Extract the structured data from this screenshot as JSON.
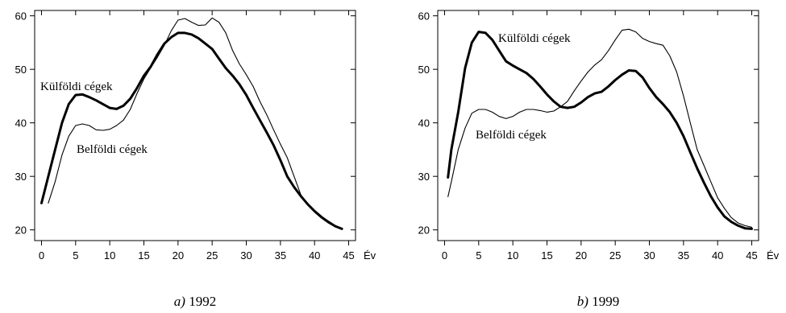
{
  "chart_data": [
    {
      "type": "line",
      "panel_letter": "a)",
      "panel_year": "1992",
      "x_unit": "Év",
      "xlim": [
        -1,
        46
      ],
      "ylim": [
        18,
        61
      ],
      "xticks": [
        0,
        5,
        10,
        15,
        20,
        25,
        30,
        35,
        40,
        45
      ],
      "yticks": [
        20,
        30,
        40,
        50,
        60
      ],
      "grid": false,
      "series": [
        {
          "name": "Külföldi cégek",
          "style": "thick",
          "points": [
            [
              0,
              25
            ],
            [
              1,
              30
            ],
            [
              2,
              35
            ],
            [
              3,
              40
            ],
            [
              4,
              43.5
            ],
            [
              5,
              45.2
            ],
            [
              6,
              45.3
            ],
            [
              7,
              44.8
            ],
            [
              8,
              44.2
            ],
            [
              9,
              43.5
            ],
            [
              10,
              42.8
            ],
            [
              11,
              42.6
            ],
            [
              12,
              43.2
            ],
            [
              13,
              44.5
            ],
            [
              14,
              46.5
            ],
            [
              15,
              48.8
            ],
            [
              16,
              50.5
            ],
            [
              17,
              52.8
            ],
            [
              18,
              54.8
            ],
            [
              19,
              56
            ],
            [
              20,
              56.8
            ],
            [
              21,
              56.8
            ],
            [
              22,
              56.5
            ],
            [
              23,
              55.8
            ],
            [
              24,
              54.8
            ],
            [
              25,
              53.8
            ],
            [
              26,
              52
            ],
            [
              27,
              50.2
            ],
            [
              28,
              48.8
            ],
            [
              29,
              47.2
            ],
            [
              30,
              45.2
            ],
            [
              31,
              42.8
            ],
            [
              32,
              40.5
            ],
            [
              33,
              38.2
            ],
            [
              34,
              35.8
            ],
            [
              35,
              33
            ],
            [
              36,
              30
            ],
            [
              37,
              28
            ],
            [
              38,
              26.3
            ],
            [
              39,
              24.8
            ],
            [
              40,
              23.5
            ],
            [
              41,
              22.4
            ],
            [
              42,
              21.5
            ],
            [
              43,
              20.7
            ],
            [
              44,
              20.2
            ]
          ]
        },
        {
          "name": "Belföldi cégek",
          "style": "thin",
          "points": [
            [
              1,
              25
            ],
            [
              2,
              29
            ],
            [
              3,
              34
            ],
            [
              4,
              37.5
            ],
            [
              5,
              39.5
            ],
            [
              6,
              39.8
            ],
            [
              7,
              39.5
            ],
            [
              8,
              38.7
            ],
            [
              9,
              38.6
            ],
            [
              10,
              38.8
            ],
            [
              11,
              39.5
            ],
            [
              12,
              40.5
            ],
            [
              13,
              42.5
            ],
            [
              14,
              45.5
            ],
            [
              15,
              48.2
            ],
            [
              16,
              50.3
            ],
            [
              17,
              52.3
            ],
            [
              18,
              54.5
            ],
            [
              19,
              57.2
            ],
            [
              20,
              59.2
            ],
            [
              21,
              59.5
            ],
            [
              22,
              58.8
            ],
            [
              23,
              58.2
            ],
            [
              24,
              58.3
            ],
            [
              25,
              59.6
            ],
            [
              26,
              58.8
            ],
            [
              27,
              56.8
            ],
            [
              28,
              53.5
            ],
            [
              29,
              51
            ],
            [
              30,
              49
            ],
            [
              31,
              46.8
            ],
            [
              32,
              44
            ],
            [
              33,
              41.5
            ],
            [
              34,
              38.7
            ],
            [
              35,
              36
            ],
            [
              36,
              33.5
            ],
            [
              37,
              30
            ],
            [
              38,
              26.5
            ],
            [
              39,
              24.8
            ],
            [
              40,
              23.3
            ],
            [
              41,
              22.2
            ],
            [
              42,
              21.3
            ],
            [
              43,
              20.6
            ],
            [
              44,
              20.1
            ]
          ]
        }
      ],
      "annotations": [
        "Külföldi cégek",
        "Belföldi cégek"
      ]
    },
    {
      "type": "line",
      "panel_letter": "b)",
      "panel_year": "1999",
      "x_unit": "Év",
      "xlim": [
        -1,
        46
      ],
      "ylim": [
        18,
        61
      ],
      "xticks": [
        0,
        5,
        10,
        15,
        20,
        25,
        30,
        35,
        40,
        45
      ],
      "yticks": [
        20,
        30,
        40,
        50,
        60
      ],
      "grid": false,
      "series": [
        {
          "name": "Külföldi cégek",
          "style": "thick",
          "points": [
            [
              0.5,
              29.8
            ],
            [
              1,
              35
            ],
            [
              2,
              42
            ],
            [
              3,
              50.2
            ],
            [
              4,
              55
            ],
            [
              5,
              57
            ],
            [
              6,
              56.8
            ],
            [
              7,
              55.5
            ],
            [
              8,
              53.5
            ],
            [
              9,
              51.5
            ],
            [
              10,
              50.7
            ],
            [
              11,
              50
            ],
            [
              12,
              49.3
            ],
            [
              13,
              48.2
            ],
            [
              14,
              46.8
            ],
            [
              15,
              45.3
            ],
            [
              16,
              44
            ],
            [
              17,
              43
            ],
            [
              18,
              42.8
            ],
            [
              19,
              43
            ],
            [
              20,
              43.8
            ],
            [
              21,
              44.8
            ],
            [
              22,
              45.5
            ],
            [
              23,
              45.8
            ],
            [
              24,
              46.8
            ],
            [
              25,
              48
            ],
            [
              26,
              49
            ],
            [
              27,
              49.8
            ],
            [
              28,
              49.7
            ],
            [
              29,
              48.5
            ],
            [
              30,
              46.5
            ],
            [
              31,
              44.8
            ],
            [
              32,
              43.5
            ],
            [
              33,
              42
            ],
            [
              34,
              40
            ],
            [
              35,
              37.5
            ],
            [
              36,
              34.5
            ],
            [
              37,
              31.5
            ],
            [
              38,
              28.8
            ],
            [
              39,
              26.3
            ],
            [
              40,
              24.2
            ],
            [
              41,
              22.5
            ],
            [
              42,
              21.5
            ],
            [
              43,
              20.8
            ],
            [
              44,
              20.3
            ],
            [
              45,
              20.2
            ]
          ]
        },
        {
          "name": "Belföldi cégek",
          "style": "thin",
          "points": [
            [
              0.5,
              26.2
            ],
            [
              1,
              29
            ],
            [
              2,
              35
            ],
            [
              3,
              39
            ],
            [
              4,
              41.8
            ],
            [
              5,
              42.5
            ],
            [
              6,
              42.5
            ],
            [
              7,
              42
            ],
            [
              8,
              41.2
            ],
            [
              9,
              40.8
            ],
            [
              10,
              41.2
            ],
            [
              11,
              42
            ],
            [
              12,
              42.5
            ],
            [
              13,
              42.5
            ],
            [
              14,
              42.3
            ],
            [
              15,
              42
            ],
            [
              16,
              42.2
            ],
            [
              17,
              43
            ],
            [
              18,
              44
            ],
            [
              19,
              46
            ],
            [
              20,
              47.8
            ],
            [
              21,
              49.5
            ],
            [
              22,
              50.8
            ],
            [
              23,
              51.8
            ],
            [
              24,
              53.5
            ],
            [
              25,
              55.5
            ],
            [
              26,
              57.3
            ],
            [
              27,
              57.5
            ],
            [
              28,
              57
            ],
            [
              29,
              55.8
            ],
            [
              30,
              55.2
            ],
            [
              31,
              54.8
            ],
            [
              32,
              54.5
            ],
            [
              33,
              52.5
            ],
            [
              34,
              49.5
            ],
            [
              35,
              45
            ],
            [
              36,
              40
            ],
            [
              37,
              35
            ],
            [
              38,
              32
            ],
            [
              39,
              29
            ],
            [
              40,
              26
            ],
            [
              41,
              24
            ],
            [
              42,
              22.3
            ],
            [
              43,
              21.3
            ],
            [
              44,
              20.8
            ],
            [
              45,
              20.5
            ]
          ]
        }
      ],
      "annotations": [
        "Külföldi cégek",
        "Belföldi cégek"
      ]
    }
  ]
}
